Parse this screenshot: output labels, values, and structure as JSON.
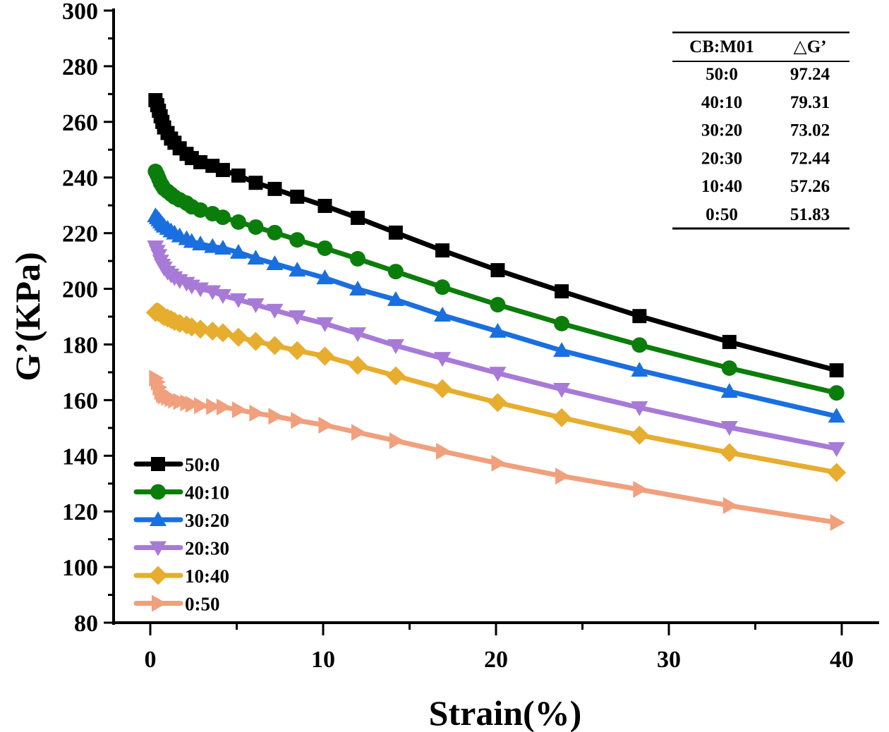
{
  "chart_data": {
    "type": "line",
    "title": "",
    "xlabel": "Strain(%)",
    "ylabel": "G’(KPa)",
    "xlim": [
      -2,
      42
    ],
    "ylim": [
      80,
      300
    ],
    "xticks": [
      0,
      10,
      20,
      30,
      40
    ],
    "yticks": [
      80,
      100,
      120,
      140,
      160,
      180,
      200,
      220,
      240,
      260,
      280,
      300
    ],
    "grid": false,
    "legend_position": "bottom-left",
    "x": [
      0.3,
      0.4,
      0.5,
      0.6,
      0.7,
      0.8,
      1.0,
      1.2,
      1.4,
      1.7,
      2.1,
      2.4,
      2.9,
      3.6,
      4.2,
      5.1,
      6.1,
      7.2,
      8.5,
      10.1,
      12.0,
      14.2,
      16.9,
      20.1,
      23.8,
      28.3,
      33.5,
      39.7
    ],
    "series": [
      {
        "name": "50:0",
        "marker": "square",
        "color": "#000000",
        "values": [
          267.8,
          266.0,
          264.0,
          262.0,
          260.0,
          258.0,
          256.0,
          254.0,
          252.5,
          250.5,
          248.5,
          247.0,
          245.5,
          244.2,
          242.7,
          240.7,
          238.1,
          235.9,
          233.1,
          229.8,
          225.5,
          220.2,
          213.8,
          206.7,
          199.1,
          190.2,
          180.9,
          170.7
        ]
      },
      {
        "name": "40:10",
        "marker": "circle",
        "color": "#0b7d0b",
        "values": [
          242.2,
          241.0,
          239.5,
          238.0,
          237.0,
          236.0,
          235.0,
          234.0,
          233.0,
          232.0,
          230.8,
          229.5,
          228.3,
          227.0,
          225.7,
          224.0,
          222.2,
          220.2,
          217.6,
          214.6,
          210.8,
          206.2,
          200.6,
          194.3,
          187.5,
          179.8,
          171.5,
          162.6
        ]
      },
      {
        "name": "30:20",
        "marker": "triangle-up",
        "color": "#1a6fe0",
        "values": [
          226.2,
          225.5,
          224.8,
          224.0,
          223.2,
          222.5,
          221.7,
          220.8,
          220.0,
          219.0,
          218.0,
          217.0,
          216.1,
          215.2,
          214.6,
          213.1,
          211.0,
          209.0,
          206.7,
          203.9,
          199.9,
          196.1,
          190.5,
          184.7,
          177.8,
          170.7,
          163.1,
          154.2
        ]
      },
      {
        "name": "20:30",
        "marker": "triangle-down",
        "color": "#a87ad8",
        "values": [
          215.1,
          213.5,
          212.0,
          210.0,
          208.5,
          207.5,
          206.0,
          205.0,
          204.0,
          203.0,
          202.0,
          201.0,
          200.0,
          199.0,
          197.6,
          196.1,
          194.3,
          192.3,
          190.0,
          187.5,
          183.9,
          179.6,
          175.0,
          169.7,
          163.9,
          157.3,
          150.2,
          142.6
        ]
      },
      {
        "name": "10:40",
        "marker": "diamond",
        "color": "#e6ad2e",
        "values": [
          191.5,
          191.8,
          191.5,
          191.0,
          190.5,
          190.0,
          189.5,
          189.0,
          188.3,
          187.6,
          187.0,
          186.3,
          185.5,
          184.8,
          184.2,
          182.6,
          181.1,
          179.6,
          177.8,
          175.8,
          172.5,
          168.7,
          164.1,
          159.1,
          153.7,
          147.4,
          141.1,
          134.0
        ]
      },
      {
        "name": "0:50",
        "marker": "triangle-right",
        "color": "#f0a07c",
        "values": [
          167.9,
          166.5,
          164.6,
          163.0,
          162.0,
          161.5,
          161.0,
          160.5,
          160.0,
          159.5,
          159.0,
          158.5,
          158.0,
          157.7,
          157.5,
          156.5,
          155.3,
          154.2,
          152.7,
          151.0,
          148.4,
          145.4,
          141.6,
          137.3,
          132.7,
          127.9,
          122.1,
          116.0
        ]
      }
    ],
    "inset_table": {
      "headers": [
        "CB:M01",
        "△G’"
      ],
      "rows": [
        [
          "50:0",
          "97.24"
        ],
        [
          "40:10",
          "79.31"
        ],
        [
          "30:20",
          "73.02"
        ],
        [
          "20:30",
          "72.44"
        ],
        [
          "10:40",
          "57.26"
        ],
        [
          "0:50",
          "51.83"
        ]
      ]
    }
  }
}
